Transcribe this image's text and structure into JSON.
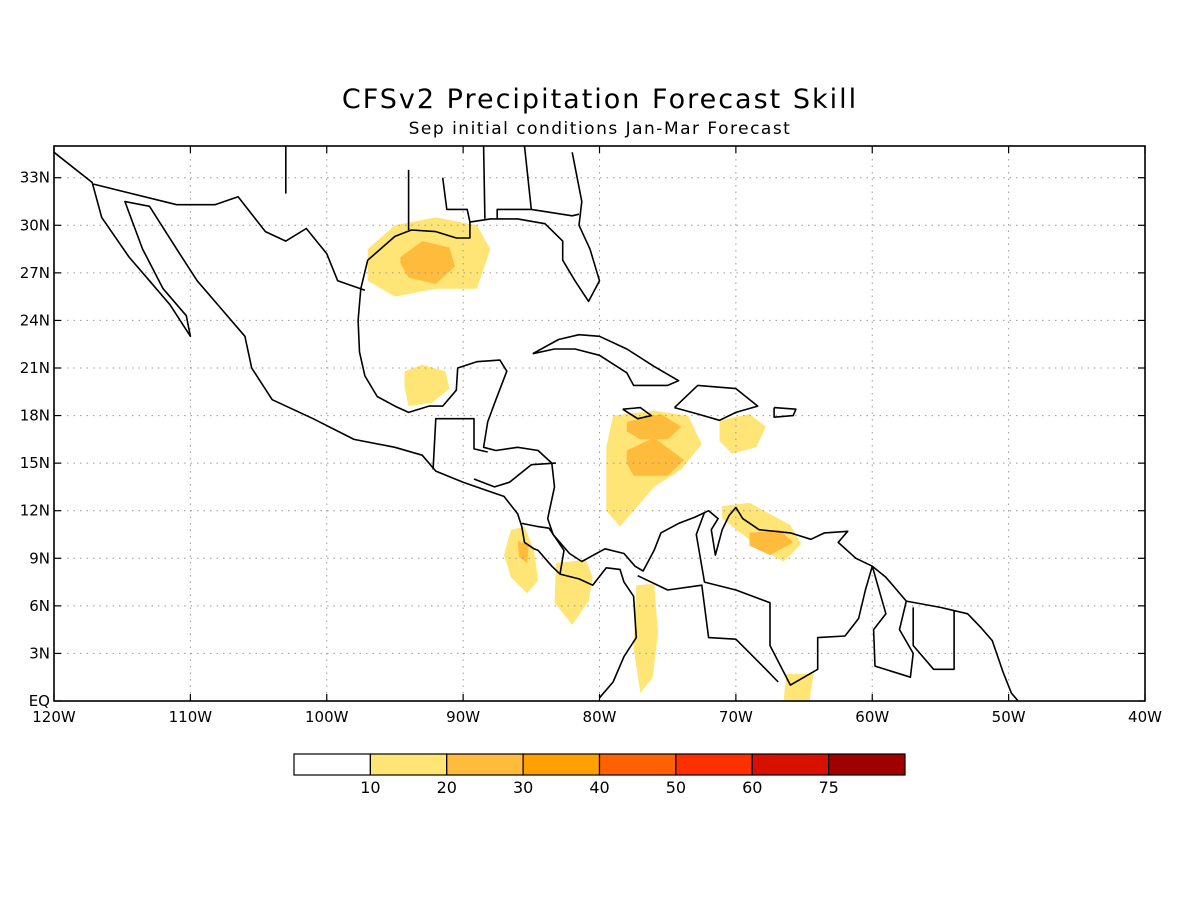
{
  "title": "CFSv2 Precipitation Forecast Skill",
  "subtitle": "Sep initial conditions  Jan-Mar Forecast",
  "lat_labels": [
    "EQ",
    "3N",
    "6N",
    "9N",
    "12N",
    "15N",
    "18N",
    "21N",
    "24N",
    "27N",
    "30N",
    "33N"
  ],
  "lat_values": [
    0,
    3,
    6,
    9,
    12,
    15,
    18,
    21,
    24,
    27,
    30,
    33
  ],
  "lon_labels": [
    "120W",
    "110W",
    "100W",
    "90W",
    "80W",
    "70W",
    "60W",
    "50W",
    "40W"
  ],
  "lon_values": [
    -120,
    -110,
    -100,
    -90,
    -80,
    -70,
    -60,
    -50,
    -40
  ],
  "extent": {
    "lon_min": -120,
    "lon_max": -40,
    "lat_min": 0,
    "lat_max": 35
  },
  "colorbar": {
    "labels": [
      "10",
      "20",
      "30",
      "40",
      "50",
      "60",
      "75"
    ],
    "colors": [
      "#ffffff",
      "#ffe575",
      "#ffbb3c",
      "#ffa000",
      "#ff6000",
      "#ff3000",
      "#d81000",
      "#a00000"
    ]
  },
  "skill_regions": [
    {
      "name": "gulf-north",
      "level": 1,
      "lon": [
        -97,
        -95,
        -92,
        -89,
        -88,
        -89,
        -92,
        -95,
        -97
      ],
      "lat": [
        28.5,
        30,
        30.5,
        30,
        28.5,
        26,
        26,
        25.5,
        26.5
      ]
    },
    {
      "name": "gulf-north-core",
      "level": 2,
      "lon": [
        -94.6,
        -93,
        -91,
        -90.6,
        -92,
        -94,
        -94.6
      ],
      "lat": [
        28,
        29,
        28.6,
        27.4,
        26.3,
        26.7,
        27.6
      ]
    },
    {
      "name": "gulf-south",
      "level": 1,
      "lon": [
        -94.3,
        -93,
        -91.3,
        -91,
        -92.3,
        -94,
        -94.3
      ],
      "lat": [
        20.8,
        21.2,
        20.8,
        19.7,
        18.8,
        18.6,
        19.8
      ]
    },
    {
      "name": "central-caribbean",
      "level": 1,
      "lon": [
        -79,
        -76,
        -73.5,
        -72.5,
        -74,
        -76,
        -78.5,
        -79.5,
        -79.5
      ],
      "lat": [
        18,
        18.3,
        18,
        16.2,
        14.6,
        13.5,
        11,
        12,
        16
      ]
    },
    {
      "name": "central-caribbean-core-a",
      "level": 2,
      "lon": [
        -78,
        -75.5,
        -74,
        -75,
        -77,
        -78
      ],
      "lat": [
        17.6,
        18.1,
        17.3,
        16.5,
        16.5,
        17
      ]
    },
    {
      "name": "central-caribbean-core-b",
      "level": 2,
      "lon": [
        -78,
        -76,
        -73.8,
        -75,
        -77.5,
        -78
      ],
      "lat": [
        15.8,
        16.6,
        15.2,
        14.2,
        14.2,
        15
      ]
    },
    {
      "name": "east-caribbean",
      "level": 1,
      "lon": [
        -71.2,
        -69,
        -67.8,
        -68.5,
        -70.3,
        -71.2
      ],
      "lat": [
        17.7,
        18.1,
        17.3,
        16,
        15.6,
        16.4
      ]
    },
    {
      "name": "venezuela-coast",
      "level": 1,
      "lon": [
        -71,
        -69,
        -66,
        -65.2,
        -66.5,
        -68,
        -69.5,
        -71
      ],
      "lat": [
        12.3,
        12.5,
        11.1,
        9.9,
        8.8,
        9.5,
        10.5,
        11.5
      ]
    },
    {
      "name": "venezuela-coast-core",
      "level": 2,
      "lon": [
        -69,
        -66.8,
        -65.8,
        -67.5,
        -69
      ],
      "lat": [
        10.6,
        10.8,
        10,
        9.2,
        9.8
      ]
    },
    {
      "name": "panama-west",
      "level": 1,
      "lon": [
        -86.5,
        -85.5,
        -84.8,
        -84.5,
        -85.3,
        -86.5,
        -87
      ],
      "lat": [
        10.8,
        11,
        9.5,
        7.6,
        6.8,
        7.8,
        9.2
      ]
    },
    {
      "name": "panama-west-core",
      "level": 2,
      "lon": [
        -86,
        -85.2,
        -85.3,
        -85.9
      ],
      "lat": [
        10.1,
        9.8,
        8.7,
        9.1
      ]
    },
    {
      "name": "panama-south",
      "level": 1,
      "lon": [
        -83.2,
        -81,
        -80.5,
        -80.8,
        -82,
        -83.3
      ],
      "lat": [
        8.7,
        8.9,
        7.8,
        6.3,
        4.8,
        6.2
      ]
    },
    {
      "name": "colombia-pacific",
      "level": 1,
      "lon": [
        -77.3,
        -76,
        -75.7,
        -76.1,
        -77,
        -77.5
      ],
      "lat": [
        7.3,
        7.4,
        4.3,
        1.5,
        0.5,
        3.3
      ]
    },
    {
      "name": "amazon-north",
      "level": 1,
      "lon": [
        -66.3,
        -64.3,
        -64.6,
        -66.5
      ],
      "lat": [
        1.7,
        1.7,
        0,
        0
      ]
    }
  ]
}
